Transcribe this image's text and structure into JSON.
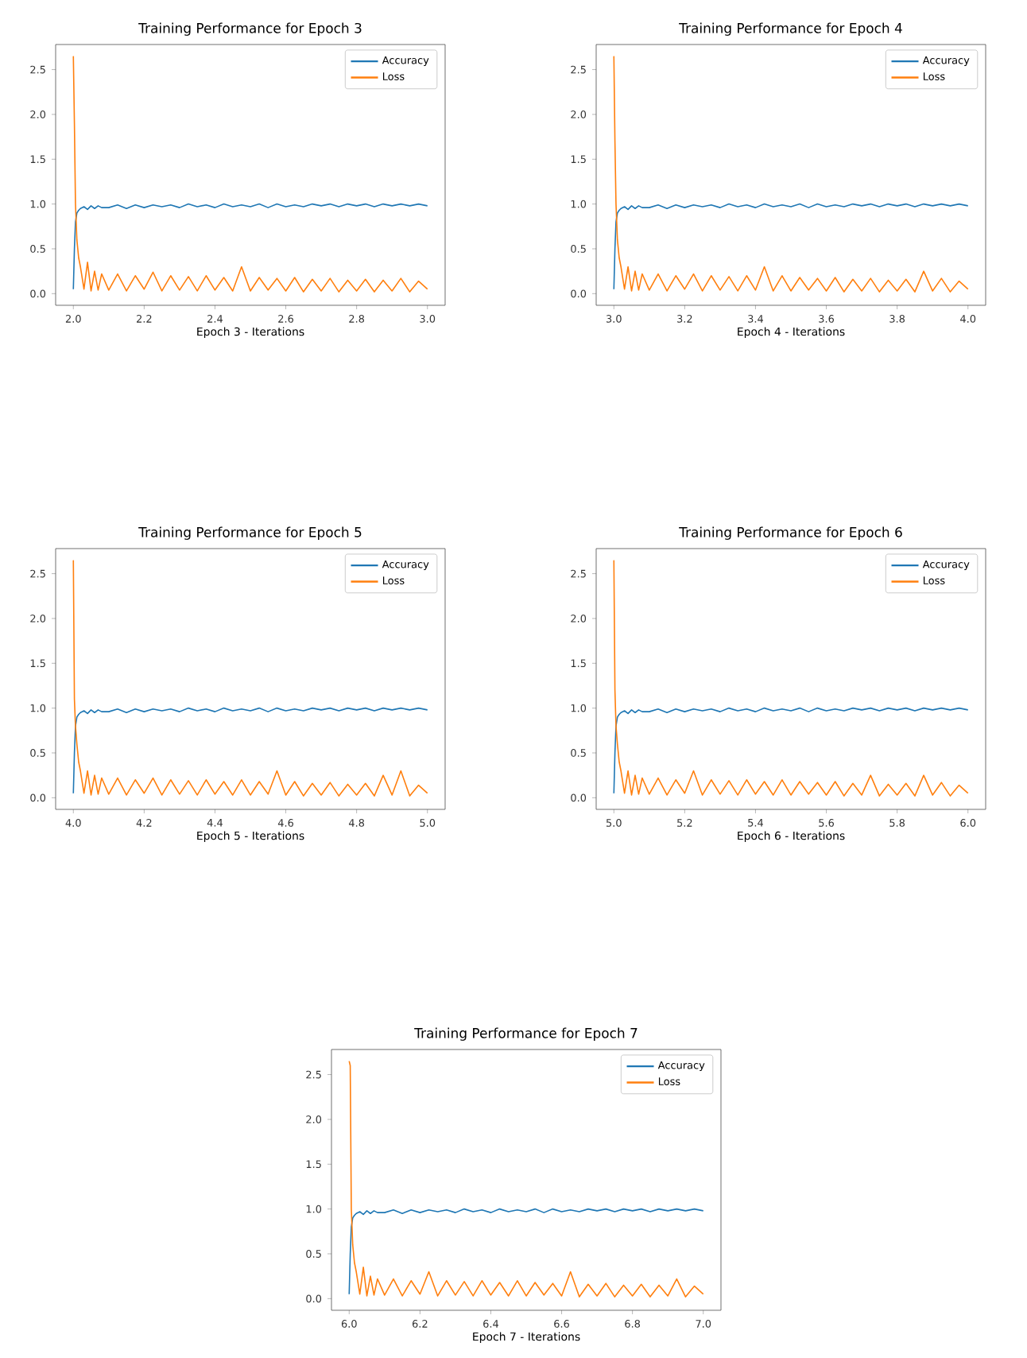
{
  "chart_data": [
    {
      "type": "line",
      "title": "Training Performance for Epoch 3",
      "xlabel": "Epoch 3 - Iterations",
      "x": [
        2.0,
        2.003,
        2.006,
        2.01,
        2.015,
        2.02,
        2.03,
        2.04,
        2.05,
        2.06,
        2.07,
        2.08,
        2.1,
        2.125,
        2.15,
        2.175,
        2.2,
        2.225,
        2.25,
        2.275,
        2.3,
        2.325,
        2.35,
        2.375,
        2.4,
        2.425,
        2.45,
        2.475,
        2.5,
        2.525,
        2.55,
        2.575,
        2.6,
        2.625,
        2.65,
        2.675,
        2.7,
        2.725,
        2.75,
        2.775,
        2.8,
        2.825,
        2.85,
        2.875,
        2.9,
        2.925,
        2.95,
        2.975,
        3.0
      ],
      "series": [
        {
          "name": "Accuracy",
          "color": "#1f77b4",
          "values": [
            0.05,
            0.5,
            0.8,
            0.9,
            0.93,
            0.95,
            0.97,
            0.94,
            0.98,
            0.95,
            0.98,
            0.96,
            0.96,
            0.99,
            0.95,
            0.99,
            0.96,
            0.99,
            0.97,
            0.99,
            0.96,
            1.0,
            0.97,
            0.99,
            0.96,
            1.0,
            0.97,
            0.99,
            0.97,
            1.0,
            0.96,
            1.0,
            0.97,
            0.99,
            0.97,
            1.0,
            0.98,
            1.0,
            0.97,
            1.0,
            0.98,
            1.0,
            0.97,
            1.0,
            0.98,
            1.0,
            0.98,
            1.0,
            0.98
          ]
        },
        {
          "name": "Loss",
          "color": "#ff7f0e",
          "values": [
            2.65,
            1.9,
            1.0,
            0.6,
            0.4,
            0.3,
            0.05,
            0.35,
            0.03,
            0.25,
            0.04,
            0.22,
            0.04,
            0.22,
            0.03,
            0.2,
            0.05,
            0.24,
            0.03,
            0.2,
            0.04,
            0.19,
            0.03,
            0.2,
            0.04,
            0.18,
            0.03,
            0.3,
            0.03,
            0.18,
            0.04,
            0.17,
            0.03,
            0.18,
            0.02,
            0.16,
            0.03,
            0.17,
            0.02,
            0.15,
            0.03,
            0.16,
            0.02,
            0.15,
            0.03,
            0.17,
            0.02,
            0.14,
            0.05
          ]
        }
      ],
      "xlim": [
        1.95,
        3.05
      ],
      "xticks": [
        {
          "value": 2.0,
          "label": "2.0"
        },
        2.2,
        2.4,
        2.6,
        2.8,
        {
          "value": 3.0,
          "label": "3.0"
        }
      ],
      "ylim": [
        -0.13,
        2.78
      ],
      "yticks": [
        {
          "value": 0,
          "label": "0.0"
        },
        0.5,
        {
          "value": 1,
          "label": "1.0"
        },
        1.5,
        {
          "value": 2,
          "label": "2.0"
        },
        2.5
      ],
      "legend": "top right"
    },
    {
      "type": "line",
      "title": "Training Performance for Epoch 4",
      "xlabel": "Epoch 4 - Iterations",
      "x": [
        3.0,
        3.003,
        3.006,
        3.01,
        3.015,
        3.02,
        3.03,
        3.04,
        3.05,
        3.06,
        3.07,
        3.08,
        3.1,
        3.125,
        3.15,
        3.175,
        3.2,
        3.225,
        3.25,
        3.275,
        3.3,
        3.325,
        3.35,
        3.375,
        3.4,
        3.425,
        3.45,
        3.475,
        3.5,
        3.525,
        3.55,
        3.575,
        3.6,
        3.625,
        3.65,
        3.675,
        3.7,
        3.725,
        3.75,
        3.775,
        3.8,
        3.825,
        3.85,
        3.875,
        3.9,
        3.925,
        3.95,
        3.975,
        4.0
      ],
      "series": [
        {
          "name": "Accuracy",
          "color": "#1f77b4",
          "values": [
            0.05,
            0.5,
            0.8,
            0.9,
            0.93,
            0.95,
            0.97,
            0.94,
            0.98,
            0.95,
            0.98,
            0.96,
            0.96,
            0.99,
            0.95,
            0.99,
            0.96,
            0.99,
            0.97,
            0.99,
            0.96,
            1.0,
            0.97,
            0.99,
            0.96,
            1.0,
            0.97,
            0.99,
            0.97,
            1.0,
            0.96,
            1.0,
            0.97,
            0.99,
            0.97,
            1.0,
            0.98,
            1.0,
            0.97,
            1.0,
            0.98,
            1.0,
            0.97,
            1.0,
            0.98,
            1.0,
            0.98,
            1.0,
            0.98
          ]
        },
        {
          "name": "Loss",
          "color": "#ff7f0e",
          "values": [
            2.65,
            1.7,
            1.0,
            0.6,
            0.4,
            0.3,
            0.05,
            0.3,
            0.03,
            0.25,
            0.04,
            0.22,
            0.04,
            0.22,
            0.03,
            0.2,
            0.05,
            0.22,
            0.03,
            0.2,
            0.04,
            0.19,
            0.03,
            0.2,
            0.04,
            0.3,
            0.03,
            0.2,
            0.03,
            0.18,
            0.04,
            0.17,
            0.03,
            0.18,
            0.02,
            0.16,
            0.03,
            0.17,
            0.02,
            0.15,
            0.03,
            0.16,
            0.02,
            0.25,
            0.03,
            0.17,
            0.02,
            0.14,
            0.05
          ]
        }
      ],
      "xlim": [
        2.95,
        4.05
      ],
      "xticks": [
        {
          "value": 3.0,
          "label": "3.0"
        },
        3.2,
        3.4,
        3.6,
        3.8,
        {
          "value": 4.0,
          "label": "4.0"
        }
      ],
      "ylim": [
        -0.13,
        2.78
      ],
      "yticks": [
        {
          "value": 0,
          "label": "0.0"
        },
        0.5,
        {
          "value": 1,
          "label": "1.0"
        },
        1.5,
        {
          "value": 2,
          "label": "2.0"
        },
        2.5
      ],
      "legend": "top right"
    },
    {
      "type": "line",
      "title": "Training Performance for Epoch 5",
      "xlabel": "Epoch 5 - Iterations",
      "x": [
        4.0,
        4.003,
        4.006,
        4.01,
        4.015,
        4.02,
        4.03,
        4.04,
        4.05,
        4.06,
        4.07,
        4.08,
        4.1,
        4.125,
        4.15,
        4.175,
        4.2,
        4.225,
        4.25,
        4.275,
        4.3,
        4.325,
        4.35,
        4.375,
        4.4,
        4.425,
        4.45,
        4.475,
        4.5,
        4.525,
        4.55,
        4.575,
        4.6,
        4.625,
        4.65,
        4.675,
        4.7,
        4.725,
        4.75,
        4.775,
        4.8,
        4.825,
        4.85,
        4.875,
        4.9,
        4.925,
        4.95,
        4.975,
        5.0
      ],
      "series": [
        {
          "name": "Accuracy",
          "color": "#1f77b4",
          "values": [
            0.05,
            0.5,
            0.8,
            0.9,
            0.93,
            0.95,
            0.97,
            0.94,
            0.98,
            0.95,
            0.98,
            0.96,
            0.96,
            0.99,
            0.95,
            0.99,
            0.96,
            0.99,
            0.97,
            0.99,
            0.96,
            1.0,
            0.97,
            0.99,
            0.96,
            1.0,
            0.97,
            0.99,
            0.97,
            1.0,
            0.96,
            1.0,
            0.97,
            0.99,
            0.97,
            1.0,
            0.98,
            1.0,
            0.97,
            1.0,
            0.98,
            1.0,
            0.97,
            1.0,
            0.98,
            1.0,
            0.98,
            1.0,
            0.98
          ]
        },
        {
          "name": "Loss",
          "color": "#ff7f0e",
          "values": [
            2.65,
            1.1,
            0.8,
            0.6,
            0.4,
            0.3,
            0.05,
            0.3,
            0.03,
            0.25,
            0.04,
            0.22,
            0.04,
            0.22,
            0.03,
            0.2,
            0.05,
            0.22,
            0.03,
            0.2,
            0.04,
            0.19,
            0.03,
            0.2,
            0.04,
            0.18,
            0.03,
            0.2,
            0.03,
            0.18,
            0.04,
            0.3,
            0.03,
            0.18,
            0.02,
            0.16,
            0.03,
            0.17,
            0.02,
            0.15,
            0.03,
            0.16,
            0.02,
            0.25,
            0.03,
            0.3,
            0.02,
            0.14,
            0.05
          ]
        }
      ],
      "xlim": [
        3.95,
        5.05
      ],
      "xticks": [
        {
          "value": 4.0,
          "label": "4.0"
        },
        4.2,
        4.4,
        4.6,
        4.8,
        {
          "value": 5.0,
          "label": "5.0"
        }
      ],
      "ylim": [
        -0.13,
        2.78
      ],
      "yticks": [
        {
          "value": 0,
          "label": "0.0"
        },
        0.5,
        {
          "value": 1,
          "label": "1.0"
        },
        1.5,
        {
          "value": 2,
          "label": "2.0"
        },
        2.5
      ],
      "legend": "top right"
    },
    {
      "type": "line",
      "title": "Training Performance for Epoch 6",
      "xlabel": "Epoch 6 - Iterations",
      "x": [
        5.0,
        5.003,
        5.006,
        5.01,
        5.015,
        5.02,
        5.03,
        5.04,
        5.05,
        5.06,
        5.07,
        5.08,
        5.1,
        5.125,
        5.15,
        5.175,
        5.2,
        5.225,
        5.25,
        5.275,
        5.3,
        5.325,
        5.35,
        5.375,
        5.4,
        5.425,
        5.45,
        5.475,
        5.5,
        5.525,
        5.55,
        5.575,
        5.6,
        5.625,
        5.65,
        5.675,
        5.7,
        5.725,
        5.75,
        5.775,
        5.8,
        5.825,
        5.85,
        5.875,
        5.9,
        5.925,
        5.95,
        5.975,
        6.0
      ],
      "series": [
        {
          "name": "Accuracy",
          "color": "#1f77b4",
          "values": [
            0.05,
            0.5,
            0.8,
            0.9,
            0.93,
            0.95,
            0.97,
            0.94,
            0.98,
            0.95,
            0.98,
            0.96,
            0.96,
            0.99,
            0.95,
            0.99,
            0.96,
            0.99,
            0.97,
            0.99,
            0.96,
            1.0,
            0.97,
            0.99,
            0.96,
            1.0,
            0.97,
            0.99,
            0.97,
            1.0,
            0.96,
            1.0,
            0.97,
            0.99,
            0.97,
            1.0,
            0.98,
            1.0,
            0.97,
            1.0,
            0.98,
            1.0,
            0.97,
            1.0,
            0.98,
            1.0,
            0.98,
            1.0,
            0.98
          ]
        },
        {
          "name": "Loss",
          "color": "#ff7f0e",
          "values": [
            2.65,
            1.2,
            0.8,
            0.6,
            0.4,
            0.3,
            0.05,
            0.3,
            0.03,
            0.25,
            0.04,
            0.22,
            0.04,
            0.22,
            0.03,
            0.2,
            0.05,
            0.3,
            0.03,
            0.2,
            0.04,
            0.19,
            0.03,
            0.2,
            0.04,
            0.18,
            0.03,
            0.2,
            0.03,
            0.18,
            0.04,
            0.17,
            0.03,
            0.18,
            0.02,
            0.16,
            0.03,
            0.25,
            0.02,
            0.15,
            0.03,
            0.16,
            0.02,
            0.25,
            0.03,
            0.17,
            0.02,
            0.14,
            0.05
          ]
        }
      ],
      "xlim": [
        4.95,
        6.05
      ],
      "xticks": [
        {
          "value": 5.0,
          "label": "5.0"
        },
        5.2,
        5.4,
        5.6,
        5.8,
        {
          "value": 6.0,
          "label": "6.0"
        }
      ],
      "ylim": [
        -0.13,
        2.78
      ],
      "yticks": [
        {
          "value": 0,
          "label": "0.0"
        },
        0.5,
        {
          "value": 1,
          "label": "1.0"
        },
        1.5,
        {
          "value": 2,
          "label": "2.0"
        },
        2.5
      ],
      "legend": "top right"
    },
    {
      "type": "line",
      "title": "Training Performance for Epoch 7",
      "xlabel": "Epoch 7 - Iterations",
      "x": [
        6.0,
        6.003,
        6.006,
        6.01,
        6.015,
        6.02,
        6.03,
        6.04,
        6.05,
        6.06,
        6.07,
        6.08,
        6.1,
        6.125,
        6.15,
        6.175,
        6.2,
        6.225,
        6.25,
        6.275,
        6.3,
        6.325,
        6.35,
        6.375,
        6.4,
        6.425,
        6.45,
        6.475,
        6.5,
        6.525,
        6.55,
        6.575,
        6.6,
        6.625,
        6.65,
        6.675,
        6.7,
        6.725,
        6.75,
        6.775,
        6.8,
        6.825,
        6.85,
        6.875,
        6.9,
        6.925,
        6.95,
        6.975,
        7.0
      ],
      "series": [
        {
          "name": "Accuracy",
          "color": "#1f77b4",
          "values": [
            0.05,
            0.5,
            0.8,
            0.9,
            0.93,
            0.95,
            0.97,
            0.94,
            0.98,
            0.95,
            0.98,
            0.96,
            0.96,
            0.99,
            0.95,
            0.99,
            0.96,
            0.99,
            0.97,
            0.99,
            0.96,
            1.0,
            0.97,
            0.99,
            0.96,
            1.0,
            0.97,
            0.99,
            0.97,
            1.0,
            0.96,
            1.0,
            0.97,
            0.99,
            0.97,
            1.0,
            0.98,
            1.0,
            0.97,
            1.0,
            0.98,
            1.0,
            0.97,
            1.0,
            0.98,
            1.0,
            0.98,
            1.0,
            0.98
          ]
        },
        {
          "name": "Loss",
          "color": "#ff7f0e",
          "values": [
            2.65,
            2.6,
            1.0,
            0.6,
            0.4,
            0.3,
            0.05,
            0.35,
            0.03,
            0.25,
            0.04,
            0.22,
            0.04,
            0.22,
            0.03,
            0.2,
            0.05,
            0.3,
            0.03,
            0.2,
            0.04,
            0.19,
            0.03,
            0.2,
            0.04,
            0.18,
            0.03,
            0.2,
            0.03,
            0.18,
            0.04,
            0.17,
            0.03,
            0.3,
            0.02,
            0.16,
            0.03,
            0.17,
            0.02,
            0.15,
            0.03,
            0.16,
            0.02,
            0.15,
            0.03,
            0.22,
            0.02,
            0.14,
            0.05
          ]
        }
      ],
      "xlim": [
        5.95,
        7.05
      ],
      "xticks": [
        {
          "value": 6.0,
          "label": "6.0"
        },
        6.2,
        6.4,
        6.6,
        6.8,
        {
          "value": 7.0,
          "label": "7.0"
        }
      ],
      "ylim": [
        -0.13,
        2.78
      ],
      "yticks": [
        {
          "value": 0,
          "label": "0.0"
        },
        0.5,
        {
          "value": 1,
          "label": "1.0"
        },
        1.5,
        {
          "value": 2,
          "label": "2.0"
        },
        2.5
      ],
      "legend": "top right"
    }
  ]
}
